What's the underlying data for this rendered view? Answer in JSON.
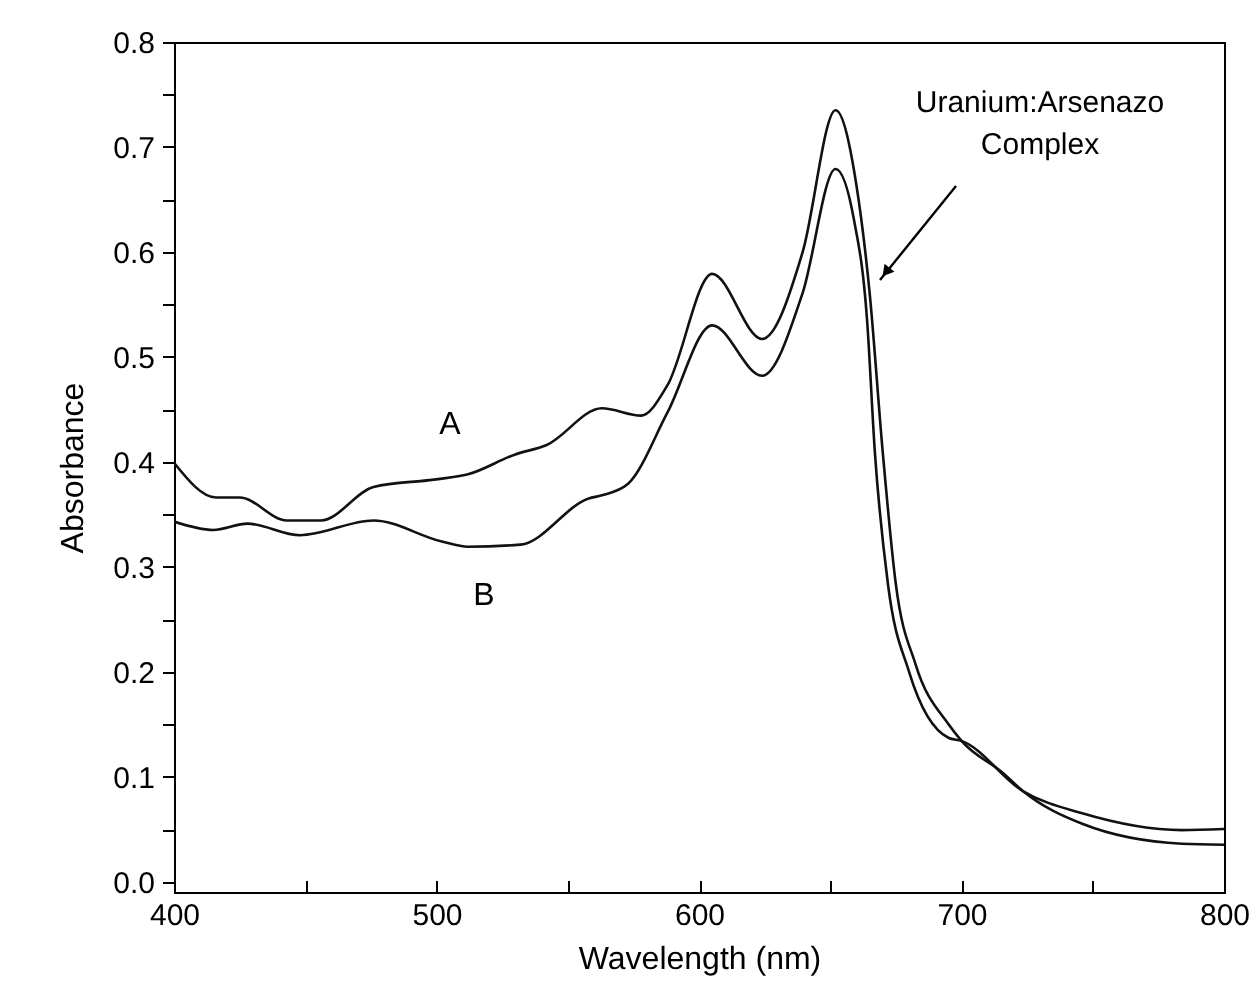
{
  "chart_data": {
    "type": "line",
    "xlabel": "Wavelength (nm)",
    "ylabel": "Absorbance",
    "xlim": [
      400,
      800
    ],
    "ylim": [
      -0.01,
      0.8
    ],
    "xticks": [
      400,
      {
        "value": 450,
        "label": null
      },
      500,
      {
        "value": 550,
        "label": null
      },
      600,
      {
        "value": 650,
        "label": null
      },
      700,
      {
        "value": 750,
        "label": null
      },
      800
    ],
    "yticks": [
      {
        "value": 0,
        "label": "0.0"
      },
      {
        "value": 0.05,
        "label": null
      },
      0.1,
      {
        "value": 0.15,
        "label": null
      },
      0.2,
      {
        "value": 0.25,
        "label": null
      },
      0.3,
      {
        "value": 0.35,
        "label": null
      },
      0.4,
      {
        "value": 0.45,
        "label": null
      },
      0.5,
      {
        "value": 0.55,
        "label": null
      },
      0.6,
      {
        "value": 0.65,
        "label": null
      },
      0.7,
      {
        "value": 0.75,
        "label": null
      },
      0.8
    ],
    "grid": false,
    "legend": false,
    "marker": "none",
    "line_style": "solid",
    "annotations": [
      "Uranium:Arsenazo Complex"
    ],
    "series": [
      {
        "name": "A",
        "color": "#111111",
        "x": [
          400,
          416,
          425,
          443,
          456,
          476,
          499,
          512,
          530,
          542,
          563,
          578,
          588,
          605,
          624,
          639.5,
          652,
          660,
          665,
          670,
          675,
          682.5,
          695,
          700,
          716,
          723.5,
          746,
          784,
          800
        ],
        "values": [
          0.399,
          0.366,
          0.366,
          0.344,
          0.344,
          0.376,
          0.383,
          0.388,
          0.407,
          0.416,
          0.451,
          0.444,
          0.473,
          0.579,
          0.517,
          0.6,
          0.735,
          0.663,
          0.561,
          0.409,
          0.283,
          0.207,
          0.15,
          0.134,
          0.103,
          0.086,
          0.055,
          0.036,
          0.035
        ]
      },
      {
        "name": "B",
        "color": "#111111",
        "x": [
          400,
          415,
          428,
          448,
          476,
          502,
          512,
          532,
          558,
          563,
          573,
          588,
          605,
          624,
          639.5,
          652,
          659,
          664,
          667,
          672,
          680,
          695,
          700,
          723.5,
          746,
          784,
          800
        ],
        "values": [
          0.343,
          0.335,
          0.341,
          0.33,
          0.344,
          0.324,
          0.319,
          0.321,
          0.365,
          0.368,
          0.379,
          0.447,
          0.53,
          0.482,
          0.561,
          0.679,
          0.631,
          0.536,
          0.409,
          0.283,
          0.2,
          0.137,
          0.134,
          0.086,
          0.065,
          0.049,
          0.05
        ]
      }
    ]
  }
}
